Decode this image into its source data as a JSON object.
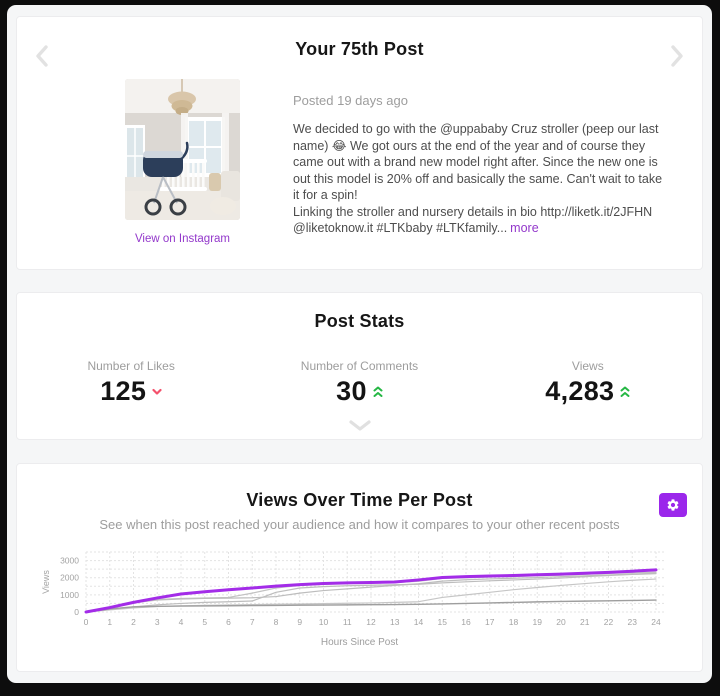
{
  "colors": {
    "accent_purple": "#9b27eb",
    "link_purple": "#9338cb",
    "chart_line_purple": "#a32ce8",
    "trend_down_red": "#f4516c",
    "trend_up_green": "#25b744",
    "page_bg": "#f5f6f7",
    "frame_bg": "#0d0d0d"
  },
  "icons": {
    "prev": "chevron-left",
    "next": "chevron-right",
    "trend_down": "chevron-down",
    "trend_up": "double-chevron-up",
    "expand": "chevron-down",
    "settings": "gear"
  },
  "post_card": {
    "title": "Your 75th Post",
    "posted": "Posted 19 days ago",
    "caption_part1": "We decided to go with the @uppababy Cruz stroller (peep our last name) 😂 We got ours at the end of the year and of course they came out with a brand new model right after. Since the new one is out this model is 20% off and basically the same. Can't wait to take it for a spin!",
    "caption_part2": "Linking the stroller and nursery details in bio http://liketk.it/2JFHN @liketoknow.it #LTKbaby #LTKfamily...",
    "more_label": "more",
    "view_link": "View on Instagram"
  },
  "stats_card": {
    "title": "Post Stats",
    "stats": [
      {
        "label": "Number of Likes",
        "value": "125",
        "trend": "down"
      },
      {
        "label": "Number of Comments",
        "value": "30",
        "trend": "up"
      },
      {
        "label": "Views",
        "value": "4,283",
        "trend": "up"
      }
    ]
  },
  "chart_card": {
    "title": "Views Over Time Per Post",
    "subtitle": "See when this post reached your audience and how it compares to your other recent posts"
  },
  "chart_data": {
    "type": "line",
    "title": "Views Over Time Per Post",
    "xlabel": "Hours Since Post",
    "ylabel": "Views",
    "x": [
      0,
      1,
      2,
      3,
      4,
      5,
      6,
      7,
      8,
      9,
      10,
      11,
      12,
      13,
      14,
      15,
      16,
      17,
      18,
      19,
      20,
      21,
      22,
      23,
      24
    ],
    "xlim": [
      0,
      24
    ],
    "ylim": [
      0,
      3500
    ],
    "yticks": [
      0,
      1000,
      2000,
      3000
    ],
    "grid": "dashed",
    "legend": "none",
    "series": [
      {
        "name": "other-post-1",
        "color": "#c2c2c2",
        "width": 1.2,
        "values": [
          0,
          240,
          520,
          730,
          790,
          820,
          850,
          1100,
          1400,
          1550,
          1620,
          1660,
          1690,
          1720,
          1790,
          1960,
          2000,
          2040,
          2070,
          2110,
          2150,
          2200,
          2250,
          2290,
          2320
        ]
      },
      {
        "name": "other-post-2",
        "color": "#bdbdbd",
        "width": 1.2,
        "values": [
          0,
          150,
          300,
          420,
          500,
          560,
          600,
          640,
          1150,
          1400,
          1480,
          1530,
          1560,
          1590,
          1620,
          1700,
          1760,
          1820,
          1870,
          1920,
          1980,
          2060,
          2130,
          2190,
          2240
        ]
      },
      {
        "name": "other-post-3",
        "color": "#c6c6c6",
        "width": 1.2,
        "values": [
          0,
          120,
          240,
          320,
          360,
          390,
          410,
          430,
          450,
          470,
          490,
          510,
          530,
          560,
          600,
          850,
          1000,
          1150,
          1300,
          1430,
          1550,
          1660,
          1760,
          1850,
          1920
        ]
      },
      {
        "name": "other-post-4",
        "color": "#9e9e9e",
        "width": 1.4,
        "values": [
          0,
          180,
          300,
          330,
          345,
          355,
          365,
          375,
          385,
          395,
          405,
          415,
          425,
          435,
          450,
          470,
          500,
          530,
          560,
          590,
          615,
          635,
          655,
          675,
          695
        ]
      },
      {
        "name": "other-post-5",
        "color": "#bdbdbd",
        "width": 1.2,
        "values": [
          0,
          250,
          540,
          700,
          760,
          790,
          810,
          830,
          900,
          1100,
          1250,
          1350,
          1450,
          1550,
          1650,
          1800,
          1880,
          1930,
          1970,
          2010,
          2060,
          2110,
          2160,
          2210,
          2260
        ]
      },
      {
        "name": "your-75th-post",
        "color": "#a32ce8",
        "width": 3,
        "values": [
          0,
          260,
          560,
          820,
          1050,
          1180,
          1300,
          1400,
          1510,
          1600,
          1660,
          1700,
          1720,
          1750,
          1870,
          2010,
          2060,
          2100,
          2130,
          2170,
          2210,
          2260,
          2310,
          2380,
          2460
        ]
      }
    ]
  }
}
